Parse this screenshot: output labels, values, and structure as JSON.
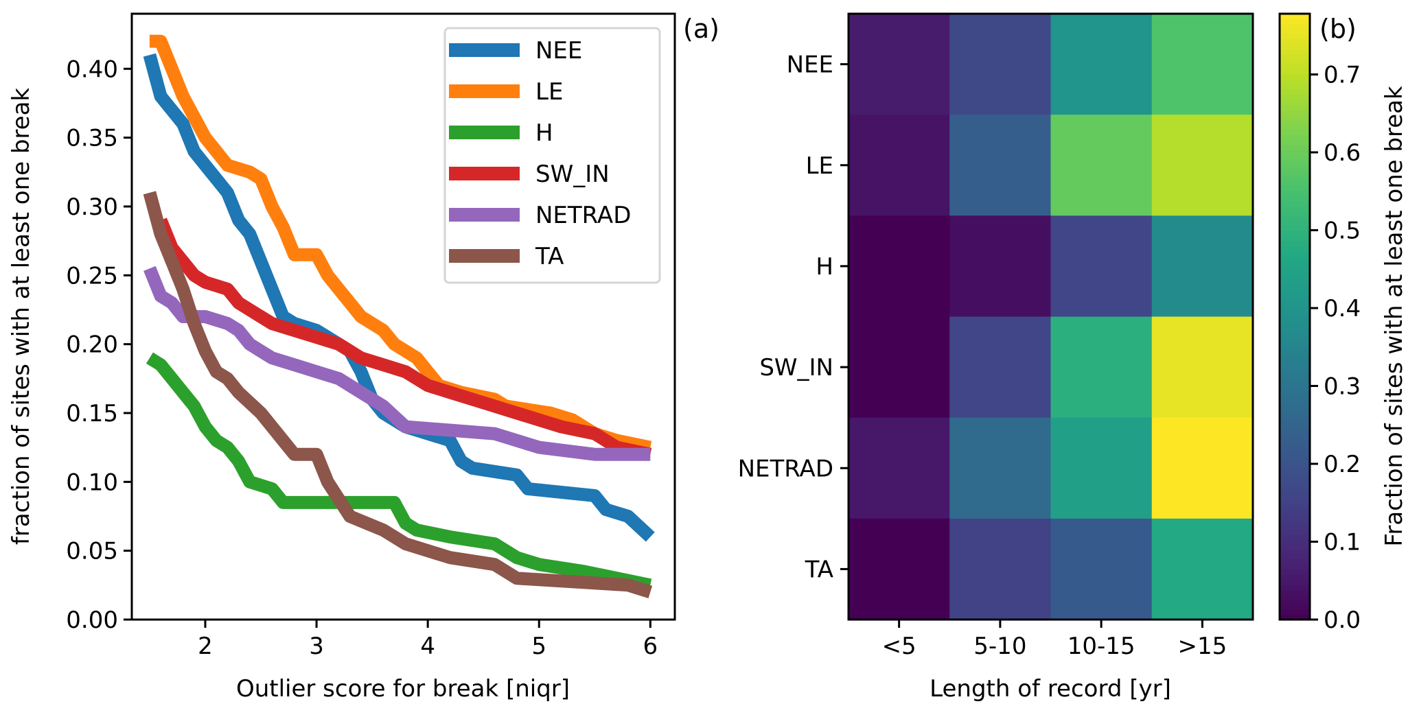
{
  "chart_data": [
    {
      "type": "line",
      "panel_label": "(a)",
      "xlabel": "Outlier score for break [niqr]",
      "ylabel": "fraction of sites with at least one break",
      "xlim": [
        1.34,
        6.22
      ],
      "ylim": [
        0.0,
        0.44
      ],
      "xticks": [
        2,
        3,
        4,
        5,
        6
      ],
      "xtick_labels": [
        "2",
        "3",
        "4",
        "5",
        "6"
      ],
      "yticks": [
        0.0,
        0.05,
        0.1,
        0.15,
        0.2,
        0.25,
        0.3,
        0.35,
        0.4
      ],
      "ytick_labels": [
        "0.00",
        "0.05",
        "0.10",
        "0.15",
        "0.20",
        "0.25",
        "0.30",
        "0.35",
        "0.40"
      ],
      "grid": false,
      "legend_position": "top-right",
      "series": [
        {
          "name": "NEE",
          "color": "#1f77b4",
          "x": [
            1.5,
            1.6,
            1.7,
            1.8,
            1.9,
            2.0,
            2.1,
            2.2,
            2.3,
            2.4,
            2.5,
            2.6,
            2.7,
            2.8,
            3.0,
            3.2,
            3.3,
            3.4,
            3.5,
            3.6,
            3.8,
            4.0,
            4.2,
            4.3,
            4.4,
            4.8,
            4.9,
            5.5,
            5.6,
            5.8,
            6.0
          ],
          "y": [
            0.41,
            0.38,
            0.37,
            0.36,
            0.34,
            0.33,
            0.32,
            0.31,
            0.29,
            0.28,
            0.26,
            0.24,
            0.22,
            0.215,
            0.21,
            0.2,
            0.195,
            0.18,
            0.16,
            0.15,
            0.14,
            0.135,
            0.13,
            0.115,
            0.11,
            0.105,
            0.095,
            0.09,
            0.08,
            0.075,
            0.06
          ]
        },
        {
          "name": "LE",
          "color": "#ff7f0e",
          "x": [
            1.5,
            1.6,
            1.7,
            1.8,
            1.9,
            2.0,
            2.1,
            2.2,
            2.4,
            2.5,
            2.6,
            2.7,
            2.8,
            3.0,
            3.1,
            3.2,
            3.3,
            3.4,
            3.6,
            3.7,
            3.9,
            4.0,
            4.1,
            4.3,
            4.6,
            4.7,
            5.1,
            5.3,
            5.5,
            5.7,
            6.0
          ],
          "y": [
            0.42,
            0.42,
            0.4,
            0.38,
            0.365,
            0.35,
            0.34,
            0.33,
            0.325,
            0.32,
            0.3,
            0.285,
            0.265,
            0.265,
            0.25,
            0.24,
            0.23,
            0.22,
            0.21,
            0.2,
            0.19,
            0.18,
            0.17,
            0.165,
            0.16,
            0.155,
            0.15,
            0.145,
            0.135,
            0.13,
            0.125
          ]
        },
        {
          "name": "H",
          "color": "#2ca02c",
          "x": [
            1.5,
            1.6,
            1.7,
            1.8,
            1.9,
            2.0,
            2.1,
            2.2,
            2.3,
            2.4,
            2.6,
            2.7,
            3.7,
            3.8,
            3.9,
            4.2,
            4.6,
            4.8,
            5.0,
            5.4,
            5.7,
            6.0
          ],
          "y": [
            0.19,
            0.185,
            0.175,
            0.165,
            0.155,
            0.14,
            0.13,
            0.125,
            0.115,
            0.1,
            0.095,
            0.085,
            0.085,
            0.07,
            0.065,
            0.06,
            0.055,
            0.045,
            0.04,
            0.035,
            0.03,
            0.025
          ]
        },
        {
          "name": "SW_IN",
          "color": "#d62728",
          "x": [
            1.6,
            1.7,
            1.8,
            1.9,
            2.0,
            2.2,
            2.3,
            2.4,
            2.5,
            2.6,
            2.8,
            3.0,
            3.2,
            3.4,
            3.6,
            3.8,
            4.0,
            4.2,
            4.4,
            4.6,
            4.8,
            5.0,
            5.2,
            5.5,
            5.7,
            6.0
          ],
          "y": [
            0.29,
            0.27,
            0.26,
            0.25,
            0.245,
            0.24,
            0.23,
            0.225,
            0.22,
            0.215,
            0.21,
            0.205,
            0.2,
            0.19,
            0.185,
            0.18,
            0.17,
            0.165,
            0.16,
            0.155,
            0.15,
            0.145,
            0.14,
            0.135,
            0.125,
            0.12
          ]
        },
        {
          "name": "NETRAD",
          "color": "#9467bd",
          "x": [
            1.5,
            1.6,
            1.7,
            1.8,
            2.0,
            2.2,
            2.3,
            2.4,
            2.6,
            2.8,
            3.0,
            3.2,
            3.4,
            3.6,
            3.8,
            4.6,
            4.8,
            5.0,
            5.5,
            6.0
          ],
          "y": [
            0.255,
            0.235,
            0.23,
            0.22,
            0.22,
            0.215,
            0.21,
            0.2,
            0.19,
            0.185,
            0.18,
            0.175,
            0.165,
            0.155,
            0.14,
            0.135,
            0.13,
            0.125,
            0.12,
            0.12
          ]
        },
        {
          "name": "TA",
          "color": "#8c564b",
          "x": [
            1.5,
            1.6,
            1.7,
            1.8,
            1.9,
            2.0,
            2.1,
            2.2,
            2.3,
            2.5,
            2.7,
            2.8,
            3.0,
            3.1,
            3.3,
            3.6,
            3.8,
            4.0,
            4.2,
            4.6,
            4.8,
            5.8,
            6.0
          ],
          "y": [
            0.31,
            0.28,
            0.26,
            0.24,
            0.215,
            0.195,
            0.18,
            0.175,
            0.165,
            0.15,
            0.13,
            0.12,
            0.12,
            0.1,
            0.075,
            0.065,
            0.055,
            0.05,
            0.045,
            0.04,
            0.03,
            0.025,
            0.02
          ]
        }
      ]
    },
    {
      "type": "heatmap",
      "panel_label": "(b)",
      "xlabel": "Length of record [yr]",
      "ylabel": "",
      "x_categories": [
        "<5",
        "5-10",
        "10-15",
        ">15"
      ],
      "y_categories": [
        "NEE",
        "LE",
        "H",
        "SW_IN",
        "NETRAD",
        "TA"
      ],
      "values": [
        [
          0.06,
          0.17,
          0.4,
          0.56
        ],
        [
          0.04,
          0.23,
          0.59,
          0.69
        ],
        [
          0.0,
          0.03,
          0.16,
          0.37
        ],
        [
          0.0,
          0.16,
          0.49,
          0.75
        ],
        [
          0.05,
          0.27,
          0.44,
          0.78
        ],
        [
          0.0,
          0.15,
          0.22,
          0.47
        ]
      ],
      "colormap": "viridis",
      "vmin": 0.0,
      "vmax": 0.778,
      "colorbar": {
        "label": "Fraction of sites with at least one break",
        "ticks": [
          0.0,
          0.1,
          0.2,
          0.3,
          0.4,
          0.5,
          0.6,
          0.7
        ],
        "tick_labels": [
          "0.0",
          "0.1",
          "0.2",
          "0.3",
          "0.4",
          "0.5",
          "0.6",
          "0.7"
        ]
      }
    }
  ]
}
